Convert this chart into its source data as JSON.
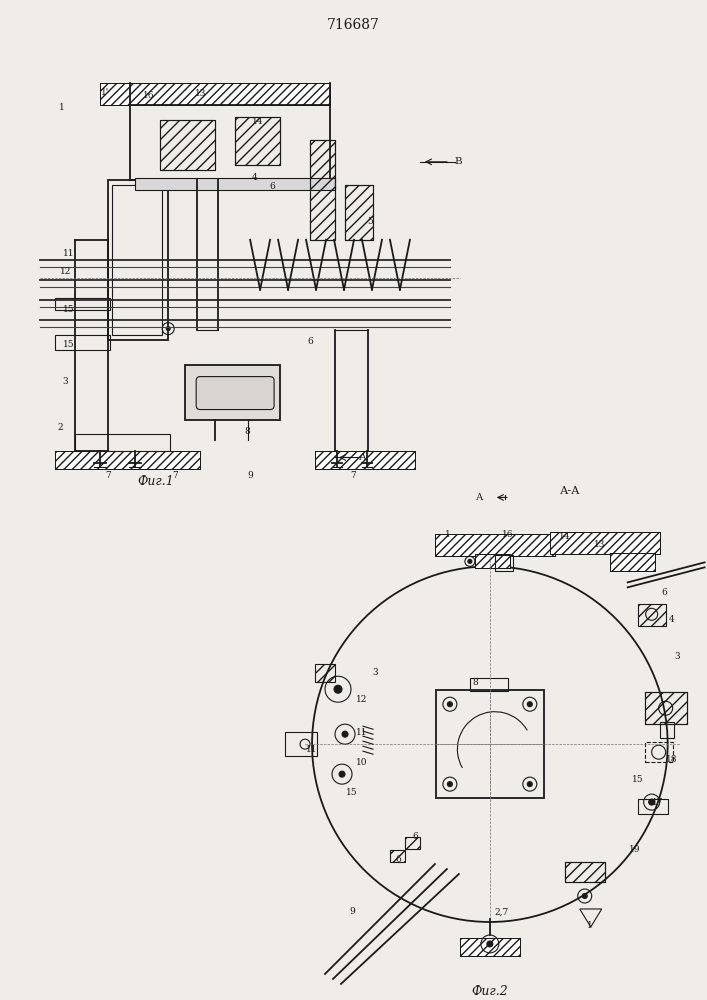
{
  "title": "716687",
  "bg_color": "#f0ede8",
  "line_color": "#1a1a1a",
  "fig1_caption": "Фиг.1",
  "fig2_caption": "Фиг.2",
  "patent_num": "716687"
}
